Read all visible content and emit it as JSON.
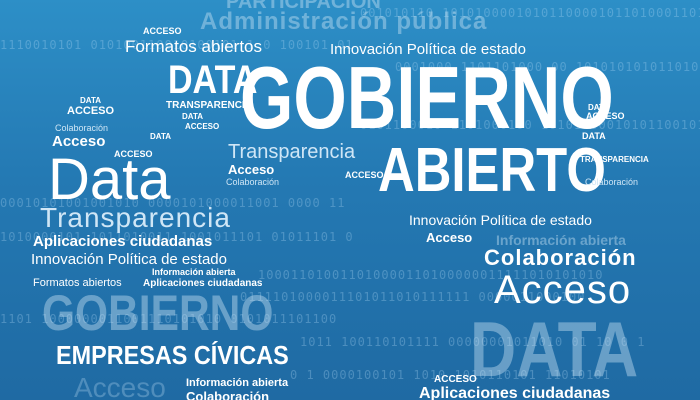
{
  "words": {
    "participacion": "PARTICIPACIÓN",
    "administracion": "Administración pública",
    "acceso_top": "ACCESO",
    "formatos_top": "Formatos abiertos",
    "innovacion_top": "Innovación Política de estado",
    "data_main": "DATA",
    "gobierno_main": "GOBIERNO",
    "abierto_main": "ABIERTO",
    "data_small_1": "DATA",
    "acceso_small_1": "ACCESO",
    "transparencia_top": "TRANSPARENCIA",
    "colaboracion_small": "Colaboración",
    "acceso_mid": "Acceso",
    "data_big_left": "Data",
    "transparencia_mid": "Transparencia",
    "acceso_mid2": "Acceso",
    "colaboracion_mid": "Colaboración",
    "transparencia_big": "Transparencia",
    "aplicaciones_1": "Aplicaciones ciudadanas",
    "innovacion_left": "Innovación Política de estado",
    "informacion_1": "Información abierta",
    "formatos_left": "Formatos abiertos",
    "aplicaciones_inline": "Aplicaciones ciudadanas",
    "gobierno_ghost": "GOBIERNO",
    "empresas": "EMPRESAS CÍVICAS",
    "acceso_bottom_ghost": "Acceso",
    "informacion_2": "Información abierta",
    "colaboracion_bottom": "Colaboración",
    "innovacion_right": "Innovación Política de estado",
    "acceso_right": "Acceso",
    "informacion_right_ghost": "Información abierta",
    "colaboracion_right": "Colaboración",
    "acceso_big_right": "Acceso",
    "data_ghost_right": "DATA",
    "acceso_small_br": "ACCESO",
    "aplicaciones_br": "Aplicaciones ciudadanas",
    "data_tiny_r1": "DATA",
    "acceso_tiny_r": "ACCESO",
    "data_tiny_r2": "DATA",
    "transparencia_tiny_r": "TRANSPARENCIA",
    "colaboracion_tiny_r": "Colaboración",
    "acceso_tiny_l": "ACCESO",
    "data_tiny_l": "DATA",
    "acceso_tiny_l2": "ACCESO",
    "data_tiny_mid": "DATA",
    "acceso_tiny_mid": "ACCESO"
  },
  "binary": [
    "001010110 1010100001010110000101101000110101",
    "0001000 1101101000 00 10101010101101000 01",
    "1110010101 010100110010100101 1 0 100101 01",
    "0101100010 1101000100 10101 00010101100101",
    "100011010011010000110100000011111010101010",
    "0111101000011101011010111111 0000011000100",
    "1101 1000000011001110101010 0101011101100",
    "1011 100110101111 00000001011010 01 10 0 1",
    "0 1 0000100101 1010 1010110101 11010101",
    "00010101001001010 0000101000011001 0000 11",
    "1010000101 1011010011 1001011101 01011101 0"
  ]
}
